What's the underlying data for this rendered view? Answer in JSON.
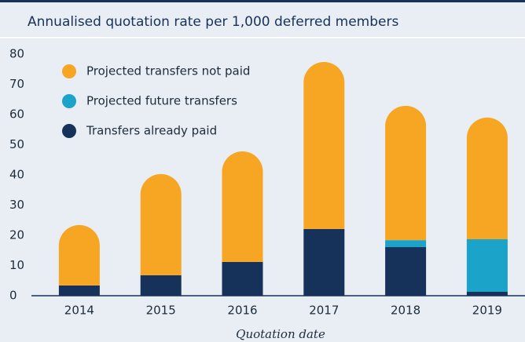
{
  "chart_data": {
    "type": "stacked_bar",
    "title": "Annualised quotation rate per 1,000 deferred members",
    "x_label": "Quotation date",
    "categories": [
      "2014",
      "2015",
      "2016",
      "2017",
      "2018",
      "2019"
    ],
    "series": [
      {
        "name": "Transfers already paid",
        "color": "#17325a",
        "values": [
          3.4,
          6.8,
          11.2,
          22.1,
          16.1,
          1.3
        ]
      },
      {
        "name": "Projected future transfers",
        "color": "#1ba3c9",
        "values": [
          0,
          0,
          0,
          0,
          2.3,
          17.4
        ]
      },
      {
        "name": "Projected transfers not paid",
        "color": "#f6a623",
        "values": [
          20,
          33.5,
          36.6,
          55.3,
          44.5,
          40.3
        ]
      }
    ],
    "ylim": [
      0,
      80
    ],
    "yticks": [
      0,
      10,
      20,
      30,
      40,
      50,
      60,
      70,
      80
    ],
    "grid": false
  }
}
